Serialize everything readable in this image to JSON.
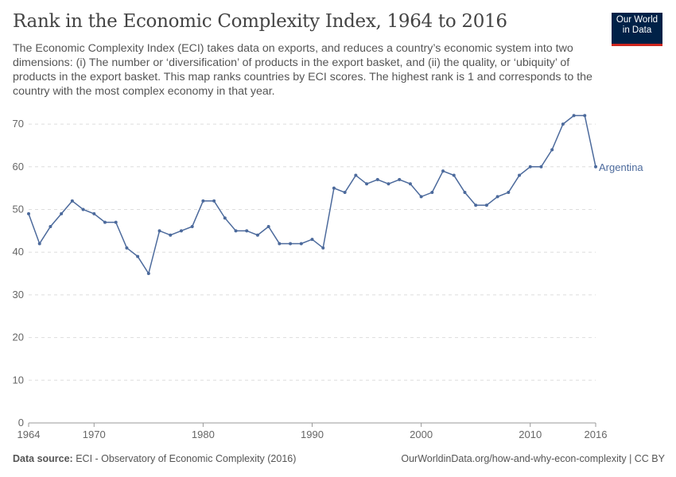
{
  "header": {
    "title": "Rank in the Economic Complexity Index, 1964 to 2016",
    "subtitle": "The Economic Complexity Index (ECI) takes data on exports, and reduces a country’s economic system into two dimensions: (i) The number or ‘diversification’ of products in the export basket, and (ii) the quality, or ‘ubiquity’ of products in the export basket. This map ranks countries by ECI scores. The highest rank is 1 and corresponds to the country with the most complex economy in that year.",
    "logo_line1": "Our World",
    "logo_line2": "in Data"
  },
  "footer": {
    "source_label": "Data source:",
    "source_text": "ECI - Observatory of Economic Complexity (2016)",
    "right_text": "OurWorldinData.org/how-and-why-econ-complexity | CC BY"
  },
  "colors": {
    "series": "#4c6a9c",
    "grid": "#dddddd",
    "logo_bg": "#002147",
    "logo_accent": "#ce261e"
  },
  "chart_data": {
    "type": "line",
    "title": "Rank in the Economic Complexity Index, 1964 to 2016",
    "ylim": [
      0,
      75
    ],
    "xlim": [
      1964,
      2016
    ],
    "yticks": [
      0,
      10,
      20,
      30,
      40,
      50,
      60,
      70
    ],
    "xticks": [
      1964,
      1970,
      1980,
      1990,
      2000,
      2010,
      2016
    ],
    "grid": "horizontal dashed",
    "series": [
      {
        "name": "Argentina",
        "x": [
          1964,
          1965,
          1966,
          1967,
          1968,
          1969,
          1970,
          1971,
          1972,
          1973,
          1974,
          1975,
          1976,
          1977,
          1978,
          1979,
          1980,
          1981,
          1982,
          1983,
          1984,
          1985,
          1986,
          1987,
          1988,
          1989,
          1990,
          1991,
          1992,
          1993,
          1994,
          1995,
          1996,
          1997,
          1998,
          1999,
          2000,
          2001,
          2002,
          2003,
          2004,
          2005,
          2006,
          2007,
          2008,
          2009,
          2010,
          2011,
          2012,
          2013,
          2014,
          2015,
          2016
        ],
        "values": [
          49,
          42,
          46,
          49,
          52,
          50,
          49,
          47,
          47,
          41,
          39,
          35,
          45,
          44,
          45,
          46,
          52,
          52,
          48,
          45,
          45,
          44,
          46,
          42,
          42,
          42,
          43,
          41,
          55,
          54,
          58,
          56,
          57,
          56,
          57,
          56,
          53,
          54,
          59,
          58,
          54,
          51,
          51,
          53,
          54,
          58,
          60,
          60,
          64,
          70,
          72,
          72,
          60
        ]
      }
    ]
  }
}
